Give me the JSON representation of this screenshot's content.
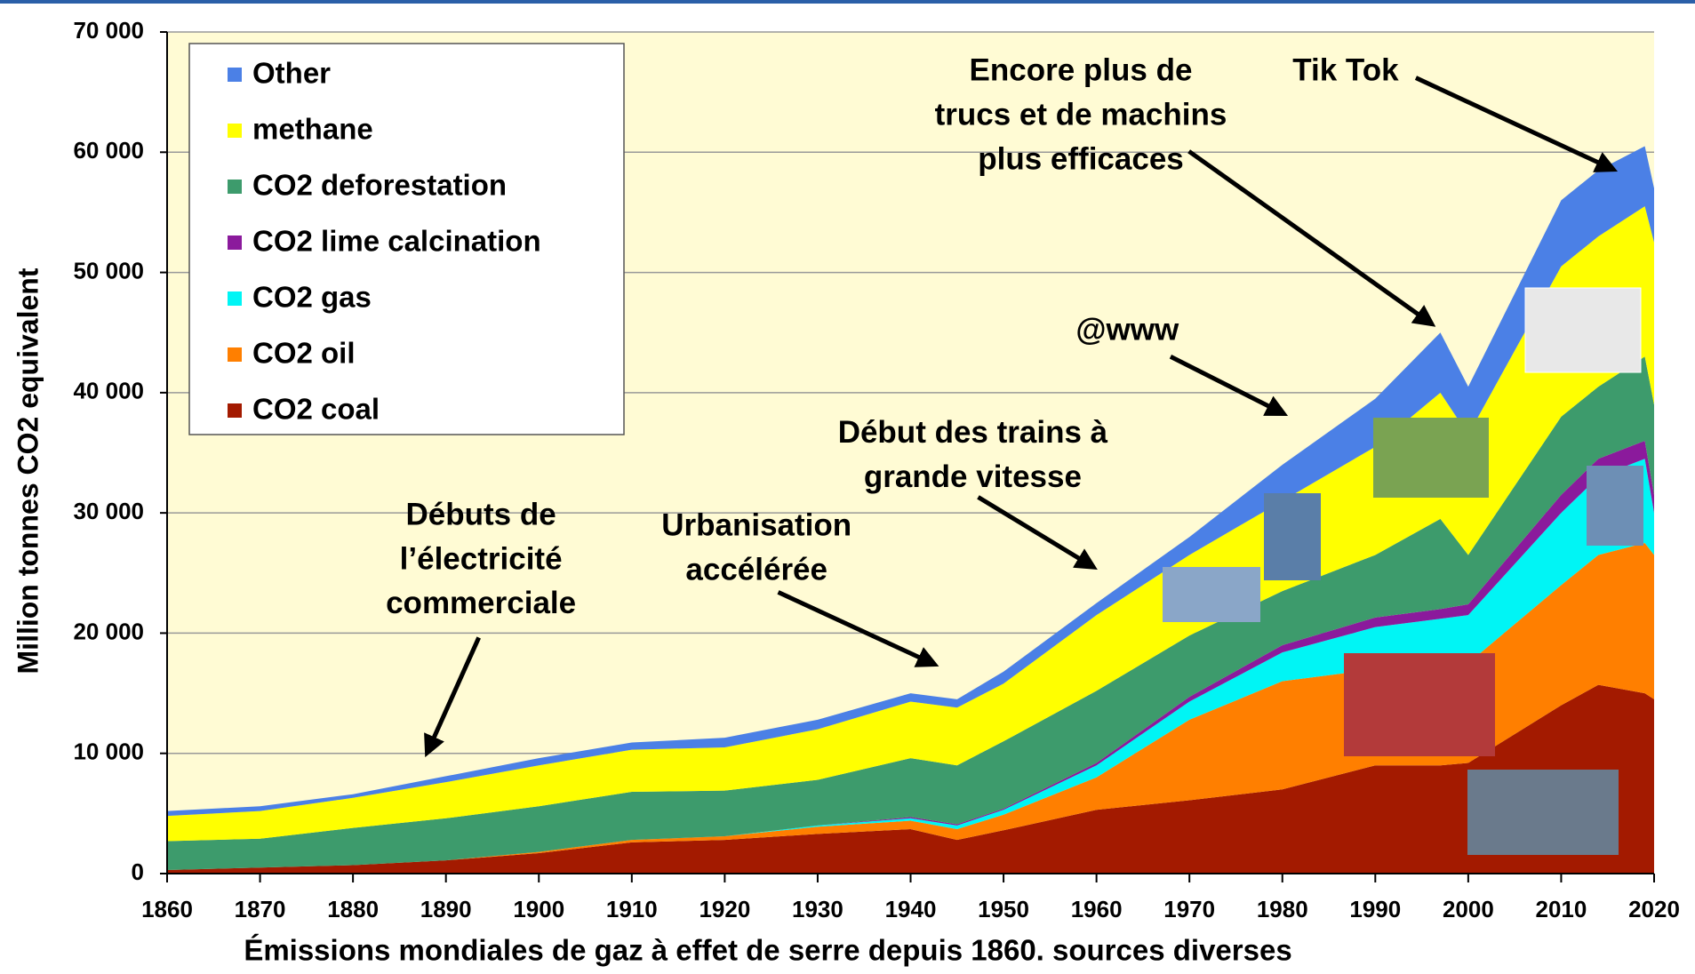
{
  "chart_data": {
    "type": "stacked_area",
    "title": "Émissions mondiales de gaz à effet de serre depuis 1860. sources diverses",
    "y_axis_label": "Million tonnes CO2 equivalent",
    "x": [
      1860,
      1870,
      1880,
      1890,
      1900,
      1910,
      1920,
      1930,
      1940,
      1945,
      1950,
      1960,
      1970,
      1980,
      1990,
      1997,
      2000,
      2010,
      2014,
      2019,
      2020
    ],
    "series": [
      {
        "name": "CO2 coal",
        "color": "#a31a00",
        "values": [
          300,
          500,
          700,
          1100,
          1700,
          2600,
          2800,
          3300,
          3700,
          2800,
          3600,
          5300,
          6100,
          7000,
          9000,
          9000,
          9200,
          14000,
          15700,
          15000,
          14500
        ]
      },
      {
        "name": "CO2 oil",
        "color": "#ff7f00",
        "values": [
          0,
          0,
          0,
          0,
          100,
          200,
          300,
          600,
          700,
          900,
          1300,
          2700,
          6700,
          9000,
          8000,
          8300,
          8300,
          10000,
          10800,
          12500,
          12000
        ]
      },
      {
        "name": "CO2 gas",
        "color": "#00f5f5",
        "values": [
          0,
          0,
          0,
          0,
          0,
          0,
          0,
          100,
          200,
          300,
          400,
          1000,
          1500,
          2400,
          3500,
          3900,
          4000,
          6000,
          6500,
          7000,
          3500
        ]
      },
      {
        "name": "CO2 lime calcination",
        "color": "#8b1a9c",
        "values": [
          0,
          0,
          0,
          0,
          0,
          0,
          0,
          0,
          100,
          100,
          100,
          200,
          400,
          600,
          800,
          800,
          900,
          1500,
          1500,
          1500,
          1500
        ]
      },
      {
        "name": "CO2 deforestation",
        "color": "#3d9b6c",
        "values": [
          2400,
          2400,
          3100,
          3500,
          3800,
          4000,
          3800,
          3800,
          4900,
          4900,
          5600,
          6000,
          5100,
          4500,
          5200,
          7500,
          4100,
          6500,
          6000,
          7000,
          7500
        ]
      },
      {
        "name": "methane",
        "color": "#ffff00",
        "values": [
          2100,
          2300,
          2500,
          3000,
          3400,
          3500,
          3600,
          4200,
          4700,
          4800,
          4800,
          6300,
          6700,
          7500,
          9000,
          10500,
          10000,
          12500,
          12500,
          12500,
          13500
        ]
      },
      {
        "name": "Other",
        "color": "#4b80e6",
        "values": [
          400,
          400,
          300,
          500,
          600,
          600,
          800,
          800,
          700,
          700,
          1000,
          1000,
          1500,
          3000,
          4000,
          5000,
          4000,
          5500,
          5500,
          5000,
          4500
        ]
      }
    ],
    "xlim": [
      1860,
      2020
    ],
    "xticks": [
      1860,
      1870,
      1880,
      1890,
      1900,
      1910,
      1920,
      1930,
      1940,
      1950,
      1960,
      1970,
      1980,
      1990,
      2000,
      2010,
      2020
    ],
    "ylim": [
      0,
      70000
    ],
    "yticks": [
      0,
      {
        "value": 10000,
        "label": "10 000"
      },
      {
        "value": 20000,
        "label": "20 000"
      },
      {
        "value": 30000,
        "label": "30 000"
      },
      {
        "value": 40000,
        "label": "40 000"
      },
      {
        "value": 50000,
        "label": "50 000"
      },
      {
        "value": 60000,
        "label": "60 000"
      },
      {
        "value": 70000,
        "label": "70 000"
      }
    ],
    "grid": true,
    "legend": "top-left",
    "annotations": [
      [
        "Débuts de",
        "l’électricité",
        "commerciale"
      ],
      [
        "Urbanisation",
        "accélérée"
      ],
      [
        "Début des trains à",
        "grande vitesse"
      ],
      [
        "@www"
      ],
      [
        "Encore plus de",
        "trucs et de machins",
        "plus efficaces"
      ],
      [
        "Tik Tok"
      ]
    ]
  }
}
